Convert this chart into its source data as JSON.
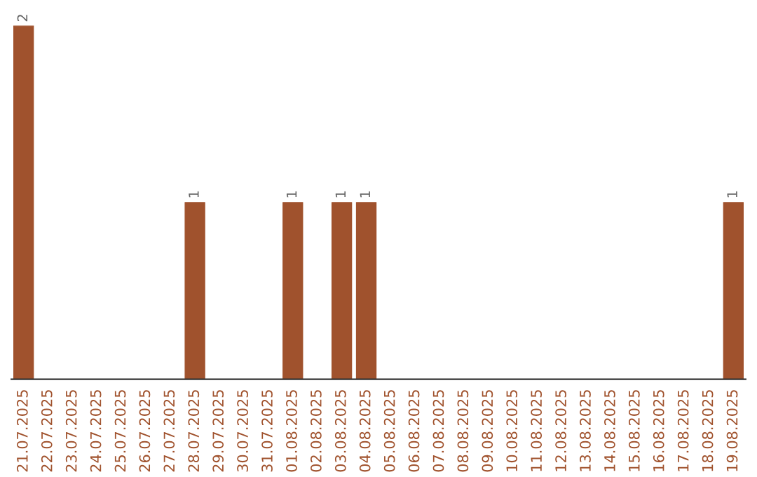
{
  "chart_data": {
    "type": "bar",
    "categories": [
      "21.07.2025",
      "22.07.2025",
      "23.07.2025",
      "24.07.2025",
      "25.07.2025",
      "26.07.2025",
      "27.07.2025",
      "28.07.2025",
      "29.07.2025",
      "30.07.2025",
      "31.07.2025",
      "01.08.2025",
      "02.08.2025",
      "03.08.2025",
      "04.08.2025",
      "05.08.2025",
      "06.08.2025",
      "07.08.2025",
      "08.08.2025",
      "09.08.2025",
      "10.08.2025",
      "11.08.2025",
      "12.08.2025",
      "13.08.2025",
      "14.08.2025",
      "15.08.2025",
      "16.08.2025",
      "17.08.2025",
      "18.08.2025",
      "19.08.2025"
    ],
    "values": [
      2,
      0,
      0,
      0,
      0,
      0,
      0,
      1,
      0,
      0,
      0,
      1,
      0,
      1,
      1,
      0,
      0,
      0,
      0,
      0,
      0,
      0,
      0,
      0,
      0,
      0,
      0,
      0,
      0,
      1
    ],
    "value_labels": [
      "2",
      null,
      null,
      null,
      null,
      null,
      null,
      "1",
      null,
      null,
      null,
      "1",
      null,
      "1",
      "1",
      null,
      null,
      null,
      null,
      null,
      null,
      null,
      null,
      null,
      null,
      null,
      null,
      null,
      null,
      "1"
    ],
    "color": "#a0522d",
    "grid": false,
    "legend": false
  }
}
